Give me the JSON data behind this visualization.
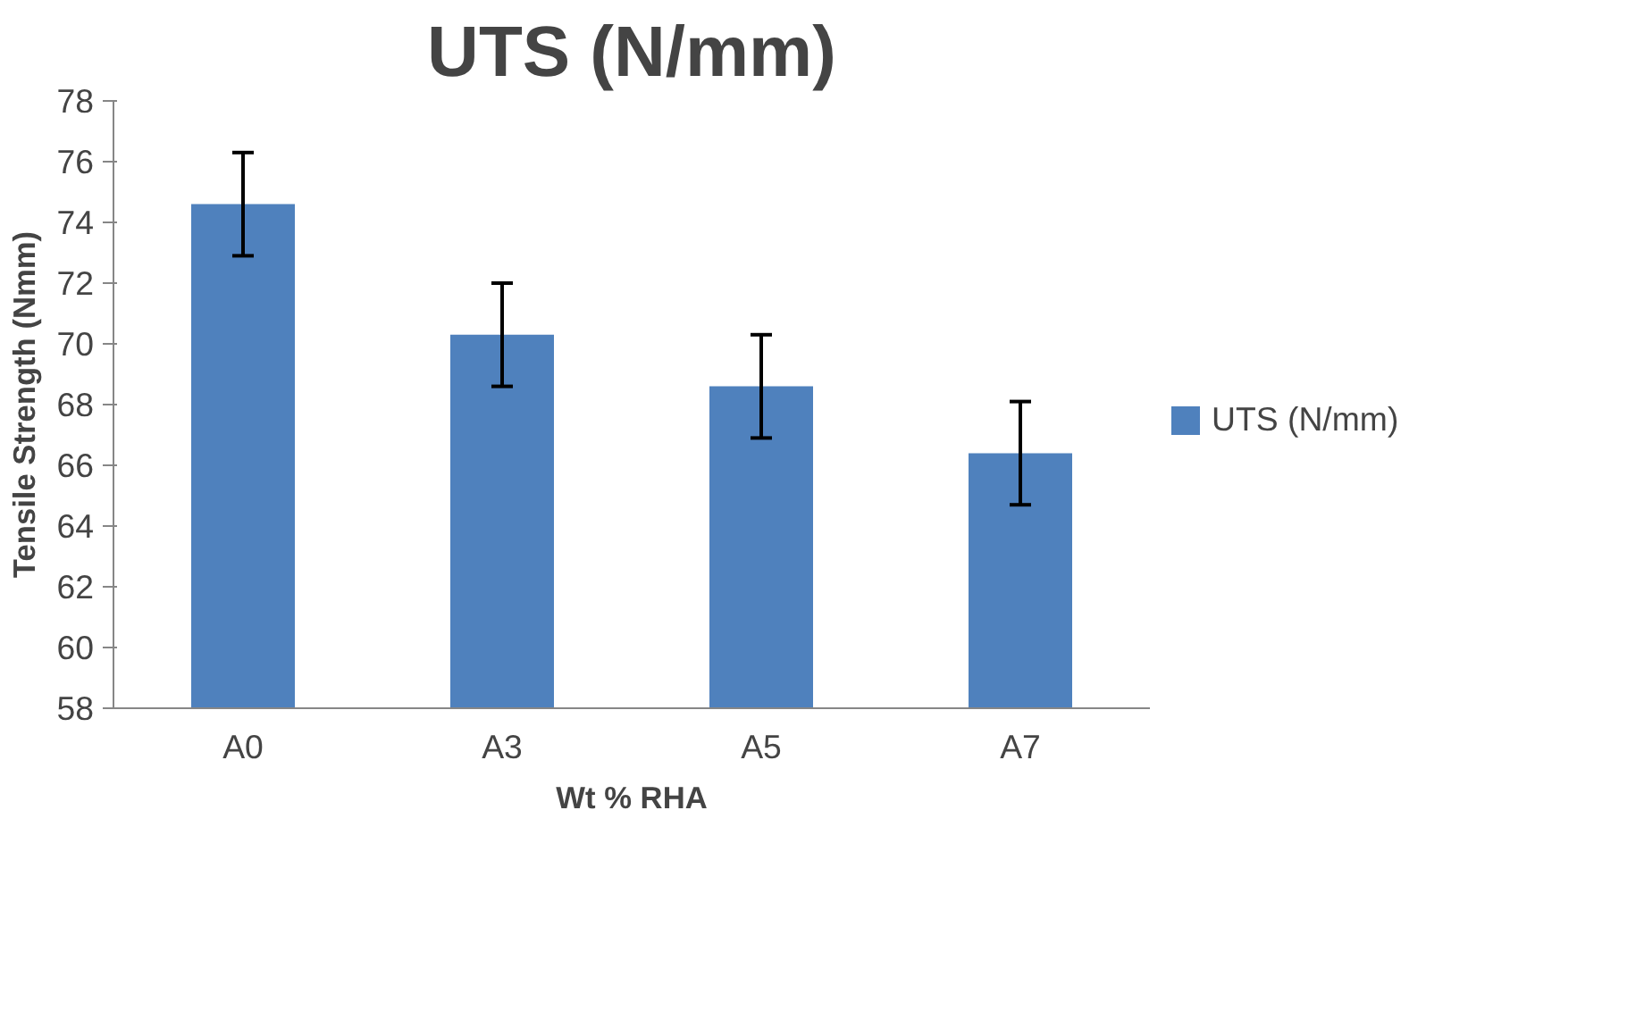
{
  "chart_data": {
    "type": "bar",
    "title": "UTS (N/mm)",
    "xlabel": "Wt % RHA",
    "ylabel": "Tensile Strength (Nmm)",
    "categories": [
      "A0",
      "A3",
      "A5",
      "A7"
    ],
    "series": [
      {
        "name": "UTS (N/mm)",
        "color": "#4f81bd",
        "values": [
          74.6,
          70.3,
          68.6,
          66.4
        ],
        "errors": [
          1.7,
          1.7,
          1.7,
          1.7
        ]
      }
    ],
    "ylim": [
      58,
      78
    ],
    "yticks": [
      58,
      60,
      62,
      64,
      66,
      68,
      70,
      72,
      74,
      76,
      78
    ],
    "grid": false,
    "legend": "right"
  }
}
